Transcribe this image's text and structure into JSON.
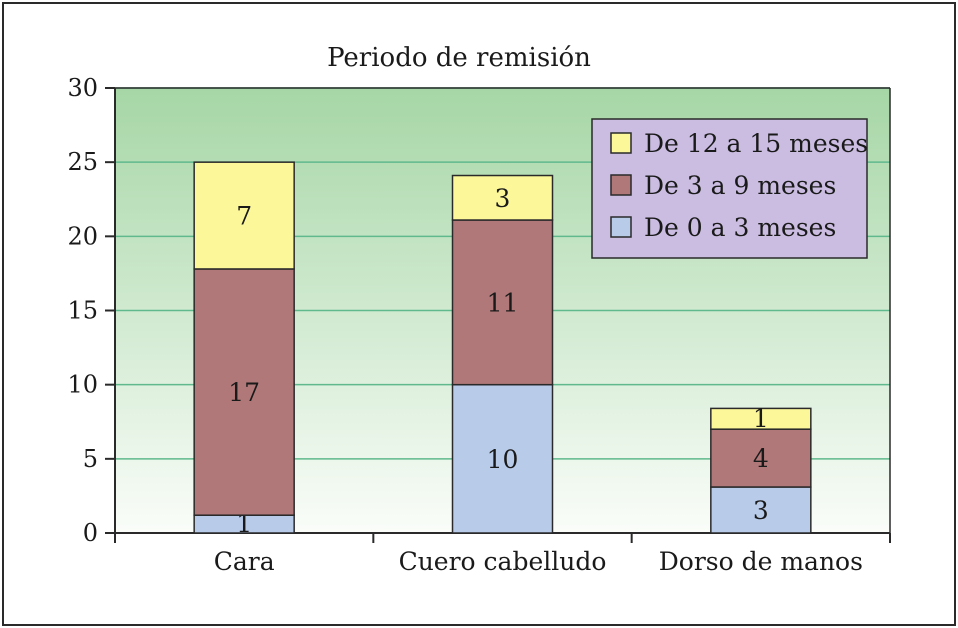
{
  "chart_data": {
    "type": "bar",
    "stacked": true,
    "title": "Periodo de remisión",
    "xlabel": "",
    "ylabel": "",
    "ylim": [
      0,
      30
    ],
    "yticks": [
      0,
      5,
      10,
      15,
      20,
      25,
      30
    ],
    "grid": true,
    "legend_position": "top-right",
    "categories": [
      "Cara",
      "Cuero cabelludo",
      "Dorso de manos"
    ],
    "series": [
      {
        "name": "De 0 a 3 meses",
        "values": [
          1.2,
          10,
          3.1
        ],
        "labels": [
          "1",
          "10",
          "3"
        ],
        "color": "#b8cbe9"
      },
      {
        "name": "De 3 a 9 meses",
        "values": [
          16.6,
          11.1,
          3.9
        ],
        "labels": [
          "17",
          "11",
          "4"
        ],
        "color": "#b07878"
      },
      {
        "name": "De 12 a 15 meses",
        "values": [
          7.2,
          3.0,
          1.4
        ],
        "labels": [
          "7",
          "3",
          "1"
        ],
        "color": "#fcf89a"
      }
    ],
    "legend_order": [
      2,
      1,
      0
    ],
    "colors": {
      "plot_top": "#a6d6a6",
      "plot_bottom": "#fafdf9",
      "grid": "#5fb98d",
      "legend_bg": "#cbbde2",
      "frame": "#2a2a2a"
    }
  }
}
